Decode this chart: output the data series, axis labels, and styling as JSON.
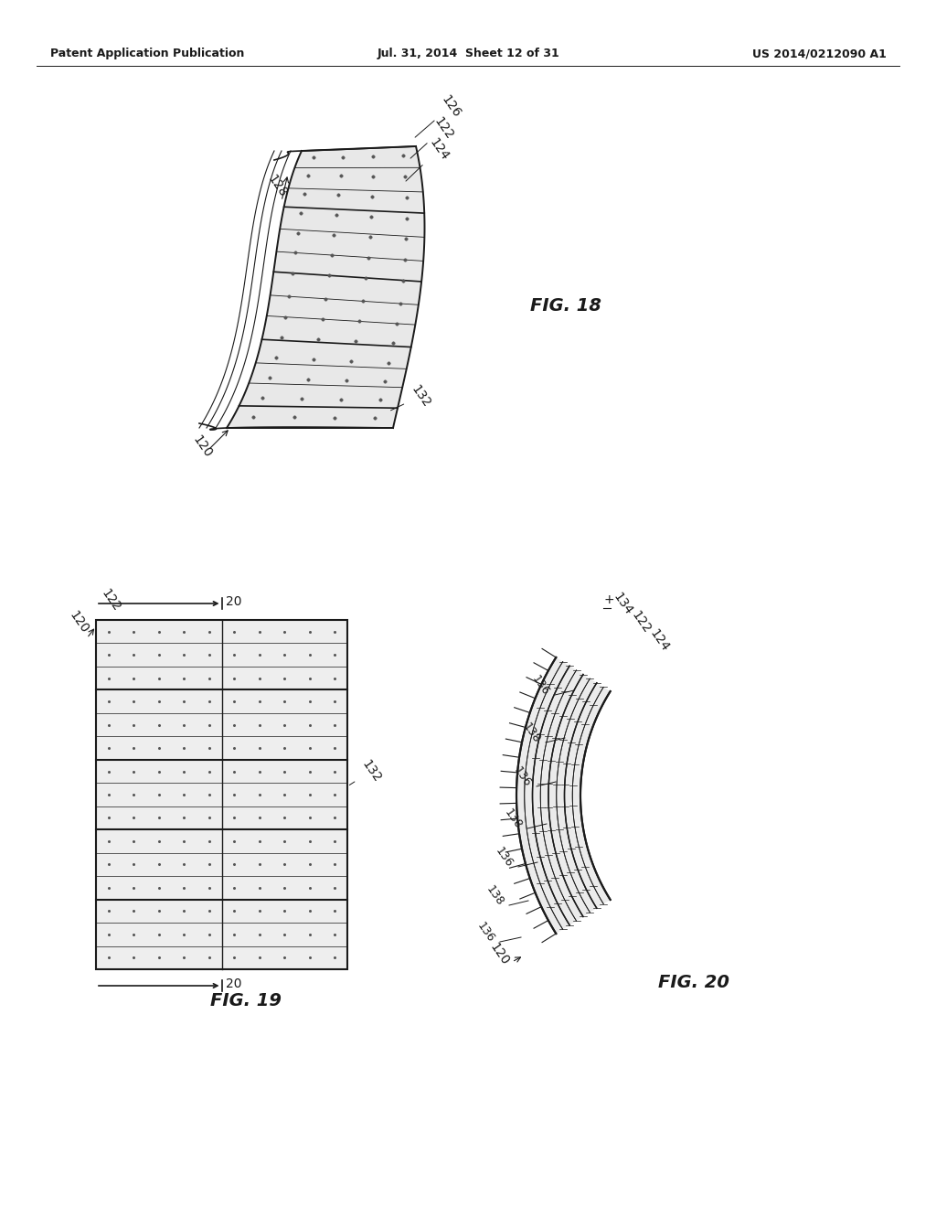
{
  "background_color": "#ffffff",
  "header_left": "Patent Application Publication",
  "header_center": "Jul. 31, 2014  Sheet 12 of 31",
  "header_right": "US 2014/0212090 A1",
  "fig18_label": "FIG. 18",
  "fig19_label": "FIG. 19",
  "fig20_label": "FIG. 20",
  "line_color": "#1a1a1a",
  "dot_color": "#555555",
  "font_size_header": 9,
  "font_size_label": 10,
  "font_size_fig": 14
}
